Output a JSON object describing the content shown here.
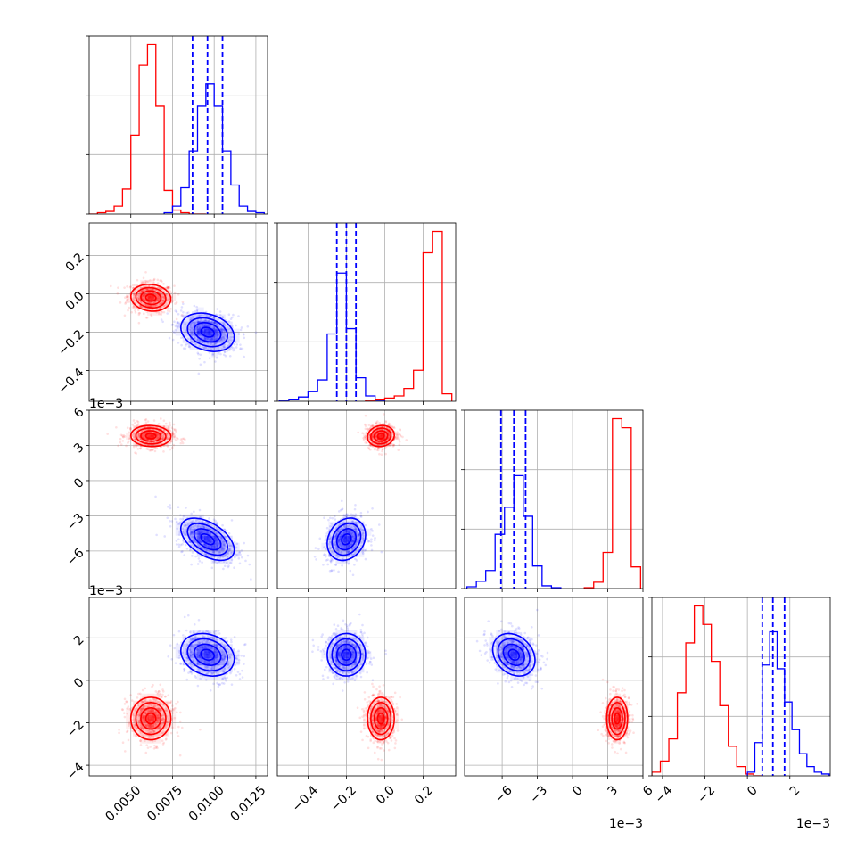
{
  "chart_data": {
    "type": "corner",
    "grid": true,
    "legend": "none",
    "series": [
      {
        "color": "#ff0000"
      },
      {
        "color": "#0000ff"
      }
    ],
    "parameters": [
      {
        "range": [
          0.0025,
          0.0132
        ],
        "ticks": [
          0.005,
          0.0075,
          0.01,
          0.0125
        ],
        "tick_labels": [
          "0.0050",
          "0.0075",
          "0.0100",
          "0.0125"
        ],
        "offset_text": ""
      },
      {
        "range": [
          -0.56,
          0.37
        ],
        "ticks": [
          -0.4,
          -0.2,
          0.0,
          0.2
        ],
        "tick_labels": [
          "−0.4",
          "−0.2",
          "0.0",
          "0.2"
        ],
        "offset_text": ""
      },
      {
        "range": [
          -9.2,
          6.0
        ],
        "ticks": [
          -6,
          -3,
          0,
          3,
          6
        ],
        "tick_labels": [
          "−6",
          "−3",
          "0",
          "3",
          "6"
        ],
        "offset_text": "1e−3"
      },
      {
        "range": [
          -4.5,
          3.9
        ],
        "ticks": [
          -4,
          -2,
          0,
          2
        ],
        "tick_labels": [
          "−4",
          "−2",
          "0",
          "2"
        ],
        "offset_text": "1e−3"
      }
    ],
    "marginals": [
      {
        "quantiles_blue": [
          0.0087,
          0.0096,
          0.0105
        ],
        "hist": [
          {
            "series": "red",
            "edges": [
              0.0025,
              0.003,
              0.0035,
              0.004,
              0.0045,
              0.005,
              0.0055,
              0.006,
              0.0065,
              0.007,
              0.0075,
              0.008,
              0.0085,
              0.009,
              0.0095
            ],
            "counts": [
              0,
              1,
              2,
              6,
              19,
              60,
              113,
              129,
              82,
              18,
              3,
              1,
              0,
              0
            ]
          },
          {
            "series": "blue",
            "edges": [
              0.007,
              0.0075,
              0.008,
              0.0085,
              0.009,
              0.0095,
              0.01,
              0.0105,
              0.011,
              0.0115,
              0.012,
              0.0125,
              0.013
            ],
            "counts": [
              1,
              6,
              20,
              48,
              82,
              99,
              82,
              48,
              22,
              6,
              2,
              1
            ]
          }
        ]
      },
      {
        "quantiles_blue": [
          -0.25,
          -0.2,
          -0.15
        ],
        "hist": [
          {
            "series": "blue",
            "edges": [
              -0.55,
              -0.5,
              -0.45,
              -0.4,
              -0.35,
              -0.3,
              -0.25,
              -0.2,
              -0.15,
              -0.1,
              -0.05,
              0.0
            ],
            "counts": [
              1,
              2,
              4,
              9,
              20,
              63,
              120,
              68,
              22,
              5,
              1
            ]
          },
          {
            "series": "red",
            "edges": [
              -0.1,
              -0.05,
              0.0,
              0.05,
              0.1,
              0.15,
              0.2,
              0.25,
              0.3,
              0.35
            ],
            "counts": [
              1,
              2,
              3,
              5,
              12,
              29,
              139,
              159,
              7
            ]
          }
        ]
      },
      {
        "quantiles_blue": [
          -6.1,
          -5.0,
          -4.0
        ],
        "hist": [
          {
            "series": "blue",
            "edges": [
              -9.0,
              -8.2,
              -7.4,
              -6.6,
              -5.8,
              -5.0,
              -4.2,
              -3.4,
              -2.6,
              -1.8,
              -1.0
            ],
            "counts": [
              2,
              8,
              20,
              60,
              90,
              125,
              80,
              25,
              3,
              1
            ]
          },
          {
            "series": "red",
            "edges": [
              1.0,
              1.8,
              2.6,
              3.4,
              4.2,
              5.0,
              5.8
            ],
            "counts": [
              1,
              7,
              40,
              188,
              178,
              24
            ]
          }
        ]
      },
      {
        "quantiles_blue": [
          0.7,
          1.2,
          1.75
        ],
        "hist": [
          {
            "series": "red",
            "edges": [
              -4.5,
              -4.1,
              -3.7,
              -3.3,
              -2.9,
              -2.5,
              -2.1,
              -1.7,
              -1.3,
              -0.9,
              -0.5,
              -0.1,
              0.3,
              0.7
            ],
            "counts": [
              2,
              8,
              20,
              45,
              72,
              92,
              82,
              62,
              38,
              16,
              5,
              1,
              0
            ]
          },
          {
            "series": "blue",
            "edges": [
              0.0,
              0.35,
              0.7,
              1.05,
              1.4,
              1.75,
              2.1,
              2.45,
              2.8,
              3.15,
              3.5,
              3.85
            ],
            "counts": [
              2,
              18,
              60,
              78,
              58,
              40,
              25,
              12,
              5,
              2,
              1
            ]
          }
        ]
      }
    ],
    "posteriors": [
      {
        "series": "red",
        "mean": [
          0.0062,
          -0.02,
          3.8,
          -1.8
        ],
        "sd": [
          0.0006,
          0.035,
          0.45,
          0.5
        ],
        "corr": [
          [
            1,
            -0.1,
            -0.05,
            0
          ],
          [
            -0.1,
            1,
            0.1,
            0
          ],
          [
            -0.05,
            0.1,
            1,
            0
          ],
          [
            0,
            0,
            0,
            1
          ]
        ]
      },
      {
        "series": "blue",
        "mean": [
          0.0096,
          -0.2,
          -5.0,
          1.2
        ],
        "sd": [
          0.0008,
          0.05,
          0.9,
          0.5
        ],
        "corr": [
          [
            1,
            -0.25,
            -0.5,
            -0.2
          ],
          [
            -0.25,
            1,
            0.2,
            0
          ],
          [
            -0.5,
            0.2,
            1,
            -0.25
          ],
          [
            -0.2,
            0,
            -0.25,
            1
          ]
        ]
      }
    ]
  }
}
